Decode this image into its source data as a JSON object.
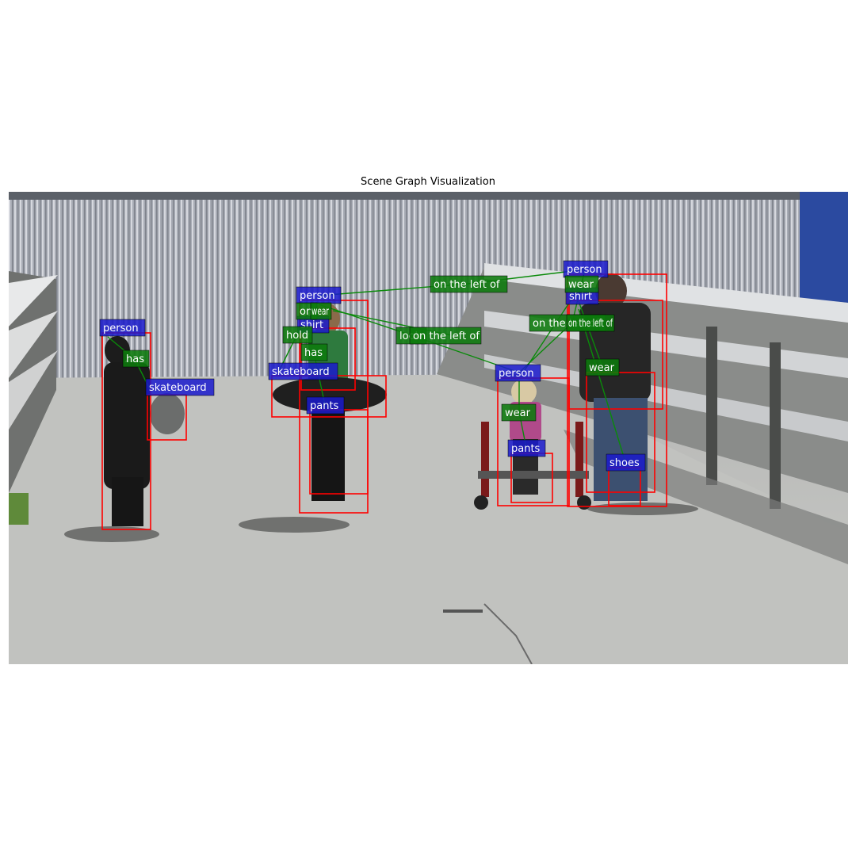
{
  "figure": {
    "title": "Scene Graph Visualization",
    "colors": {
      "box": "#ff0000",
      "object_label": "#1a1acc",
      "relation_label": "#0c7a0c",
      "edge": "#0a8a0a"
    }
  },
  "objects": [
    {
      "id": "o1",
      "label": "person"
    },
    {
      "id": "o2",
      "label": "skateboard"
    },
    {
      "id": "o3",
      "label": "person"
    },
    {
      "id": "o4",
      "label": "shirt"
    },
    {
      "id": "o5",
      "label": "skateboard"
    },
    {
      "id": "o6",
      "label": "pants"
    },
    {
      "id": "o7",
      "label": "person"
    },
    {
      "id": "o8",
      "label": "pants"
    },
    {
      "id": "o9",
      "label": "person"
    },
    {
      "id": "o10",
      "label": "shirt"
    },
    {
      "id": "o11",
      "label": "shoes"
    }
  ],
  "relations": [
    {
      "label": "has",
      "from": "o1",
      "to": "o2"
    },
    {
      "label": "on",
      "from": "o3",
      "to": "o5"
    },
    {
      "label": "wear",
      "from": "o3",
      "to": "o4"
    },
    {
      "label": "hold",
      "from": "o3",
      "to": "o5"
    },
    {
      "label": "has",
      "from": "o3",
      "to": "o6"
    },
    {
      "label": "on the left of",
      "from": "o3",
      "to": "o9"
    },
    {
      "label": "look",
      "from": "o3",
      "to": "o7"
    },
    {
      "label": "on the left of",
      "from": "o3",
      "to": "o7"
    },
    {
      "label": "wear",
      "from": "o9",
      "to": "o10"
    },
    {
      "label": "on the left of",
      "from": "o7",
      "to": "o9"
    },
    {
      "label": "on the left of",
      "from": "o9",
      "to": "o10"
    },
    {
      "label": "wear",
      "from": "o9",
      "to": "o11"
    },
    {
      "label": "wear",
      "from": "o7",
      "to": "o8"
    }
  ]
}
